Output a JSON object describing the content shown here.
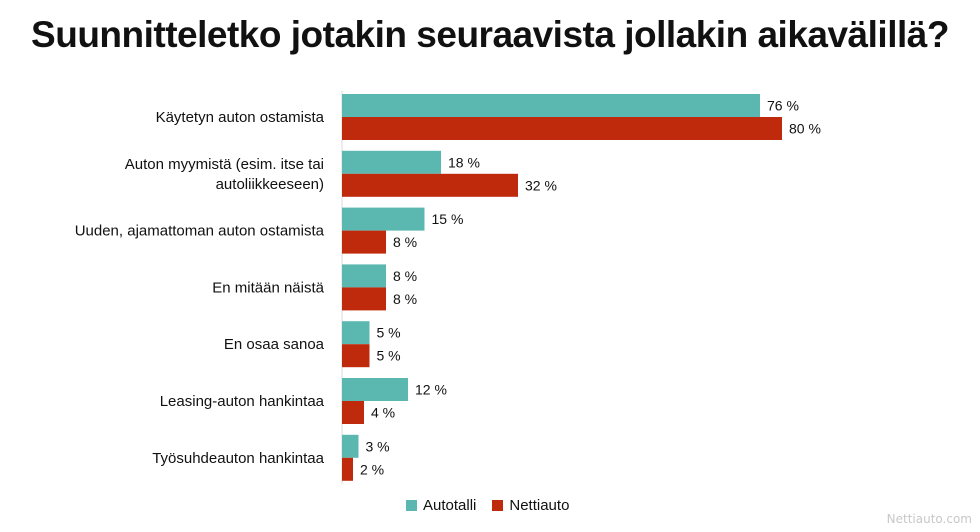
{
  "chart_data": {
    "type": "bar",
    "orientation": "horizontal",
    "title": "Suunnitteletko jotakin seuraavista jollakin aikavälillä?",
    "categories": [
      [
        "Käytetyn auton ostamista"
      ],
      [
        "Auton myymistä (esim. itse tai",
        "autoliikkeeseen)"
      ],
      [
        "Uuden, ajamattoman auton ostamista"
      ],
      [
        "En mitään näistä"
      ],
      [
        "En osaa sanoa"
      ],
      [
        "Leasing-auton hankintaa"
      ],
      [
        "Työsuhdeauton hankintaa"
      ]
    ],
    "series": [
      {
        "name": "Autotalli",
        "color": "#5bb8b0",
        "values": [
          76,
          18,
          15,
          8,
          5,
          12,
          3
        ],
        "labels": [
          "76 %",
          "18 %",
          "15 %",
          "8 %",
          "5 %",
          "12 %",
          "3 %"
        ]
      },
      {
        "name": "Nettiauto",
        "color": "#bf2a0d",
        "values": [
          80,
          32,
          8,
          8,
          5,
          4,
          2
        ],
        "labels": [
          "80 %",
          "32 %",
          "8 %",
          "8 %",
          "5 %",
          "4 %",
          "2 %"
        ]
      }
    ],
    "xlim": [
      0,
      100
    ],
    "grid": false,
    "legend": "bottom-center"
  },
  "watermark": "Nettiauto.com"
}
